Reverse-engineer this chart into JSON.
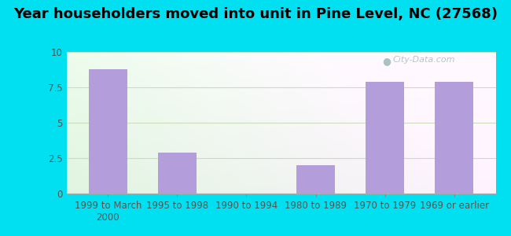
{
  "categories": [
    "1999 to March\n2000",
    "1995 to 1998",
    "1990 to 1994",
    "1980 to 1989",
    "1970 to 1979",
    "1969 or earlier"
  ],
  "values": [
    8.8,
    2.9,
    0,
    2.0,
    7.9,
    7.9
  ],
  "bar_color": "#b39ddb",
  "title": "Year householders moved into unit in Pine Level, NC (27568)",
  "ylim": [
    0,
    10
  ],
  "yticks": [
    0,
    2.5,
    5,
    7.5,
    10
  ],
  "ytick_labels": [
    "0",
    "2.5",
    "5",
    "7.5",
    "10"
  ],
  "background_outer": "#00e0f0",
  "title_fontsize": 13,
  "tick_fontsize": 8.5,
  "watermark": "City-Data.com",
  "gradient_colors": [
    "#e8f5e9",
    "#f0fff0",
    "#ffffff",
    "#e0f2e0"
  ],
  "grid_color": "#ddeecc",
  "bottom_line_color": "#aaaaaa"
}
